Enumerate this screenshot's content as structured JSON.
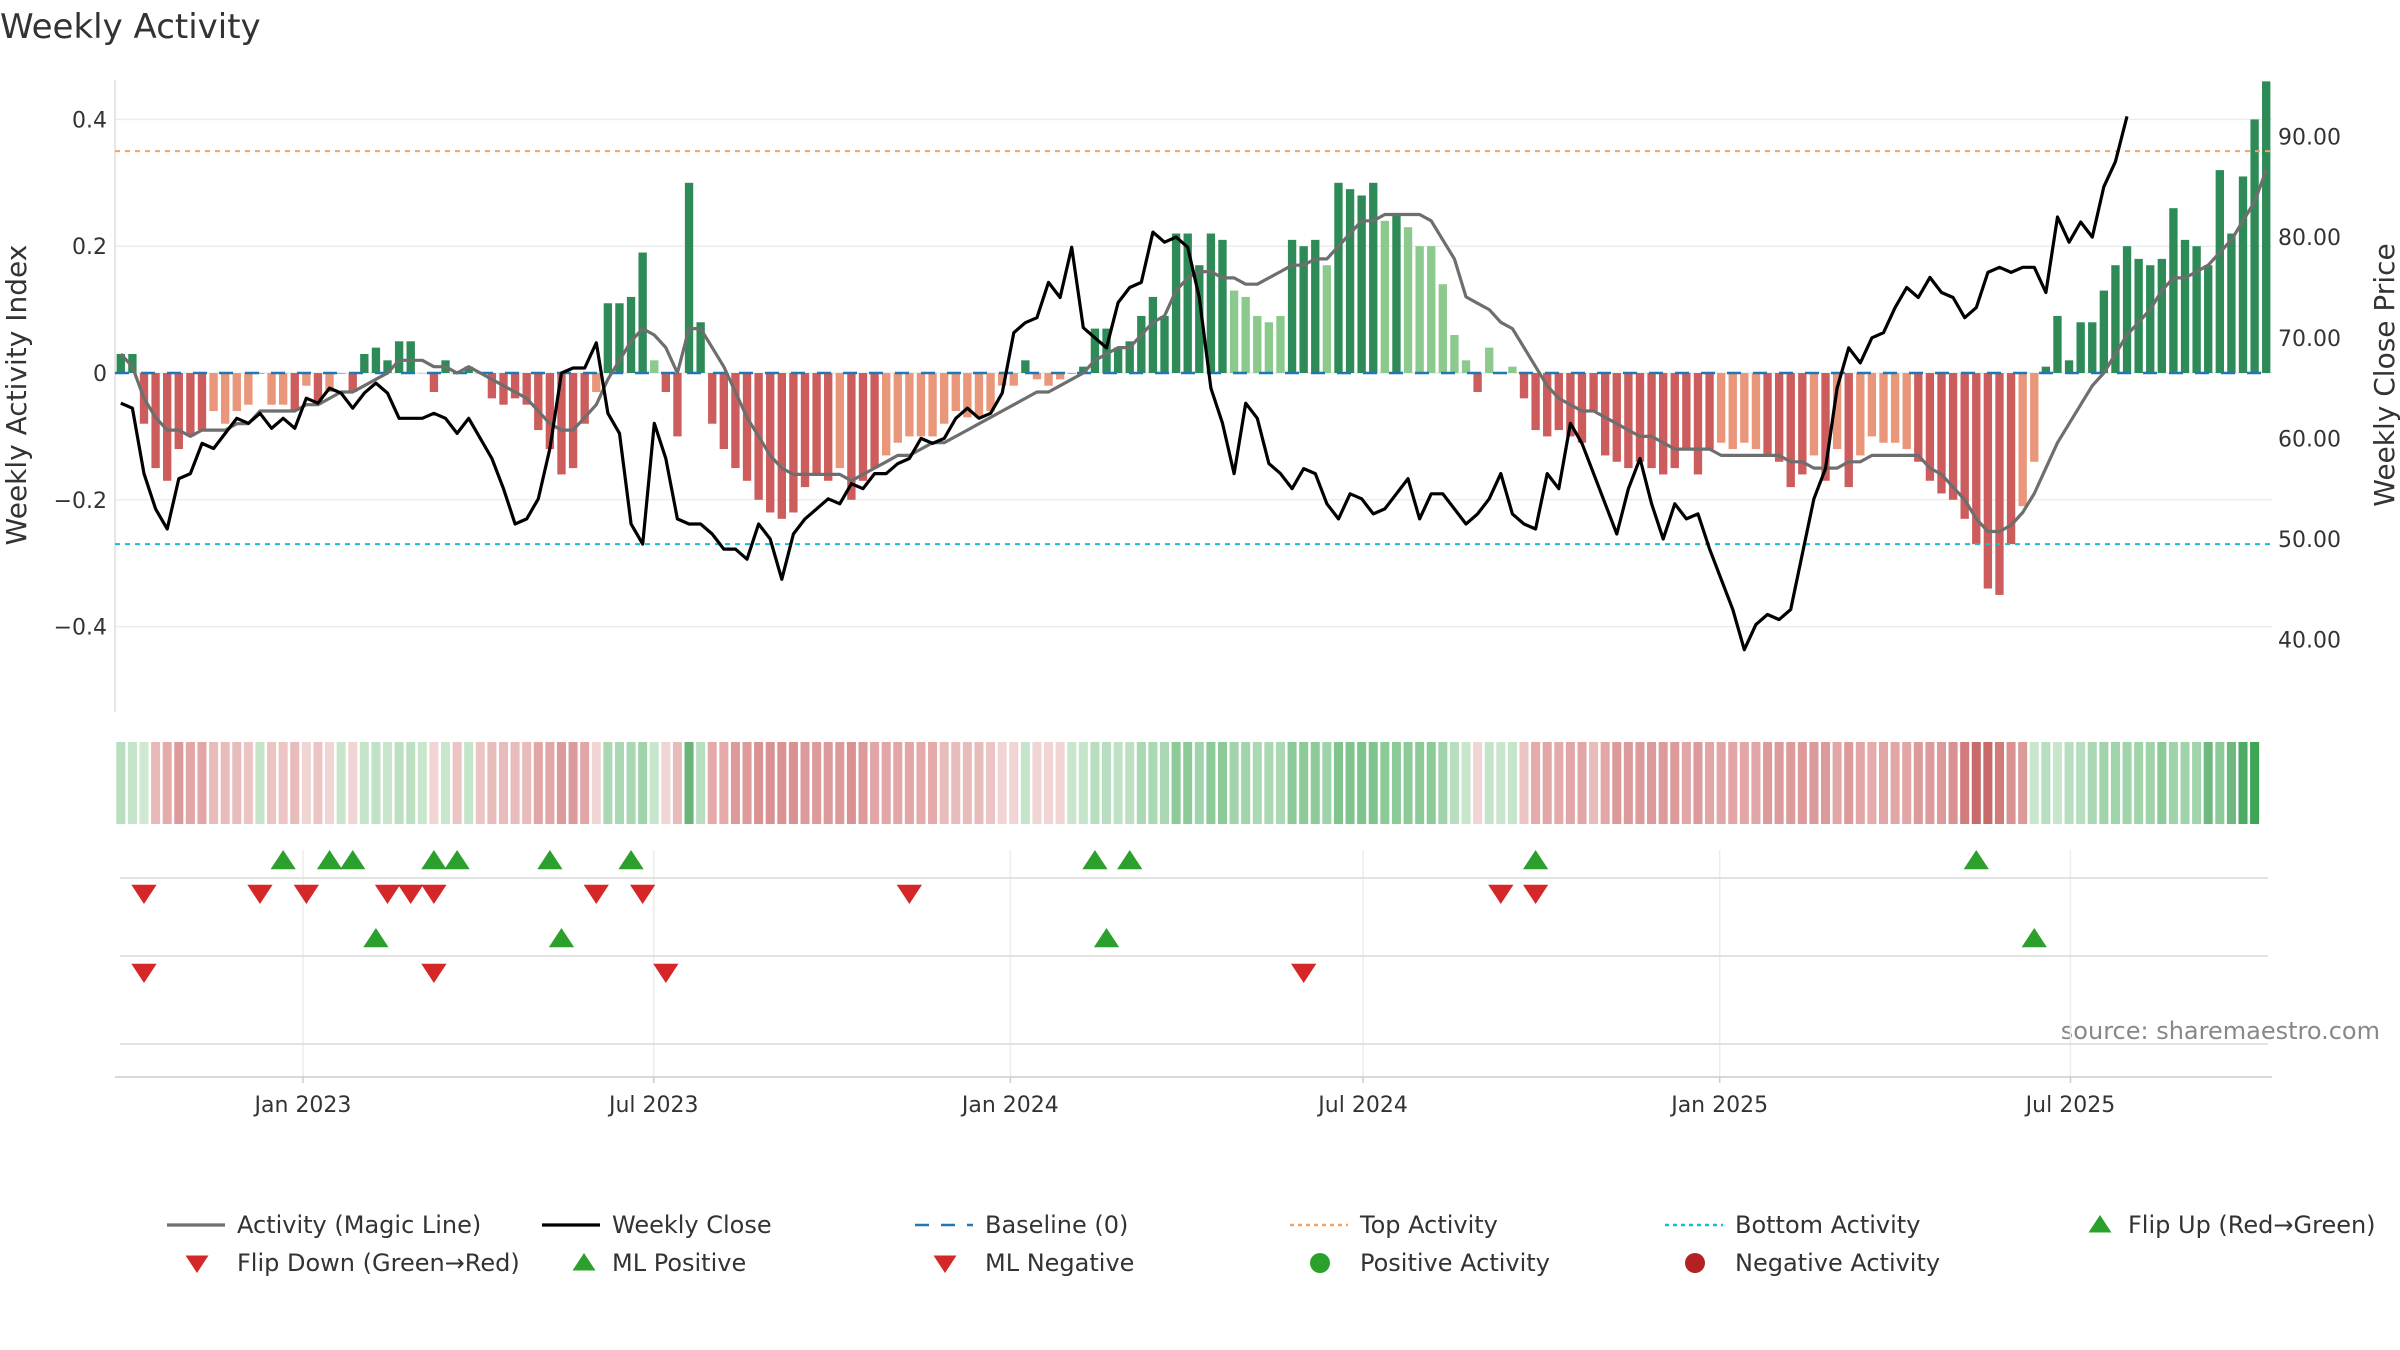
{
  "chart_data": {
    "type": "bar",
    "title": "Weekly Activity",
    "ylabel": "Weekly Activity Index",
    "y2label": "Weekly Close Price",
    "source_text": "source: sharemaestro.com",
    "ylim": [
      -0.5,
      0.5
    ],
    "y2lim": [
      35,
      98
    ],
    "yticks": [
      -0.4,
      -0.2,
      0,
      0.2,
      0.4
    ],
    "ytick_labels": [
      "−0.4",
      "−0.2",
      "0",
      "0.2",
      "0.4"
    ],
    "y2ticks": [
      40,
      50,
      60,
      70,
      80,
      90
    ],
    "y2tick_labels": [
      "40.00",
      "50.00",
      "60.00",
      "70.00",
      "80.00",
      "90.00"
    ],
    "x_start": "2022-09-26",
    "x_end": "2025-10-13",
    "xtick_labels": [
      "Jan 2023",
      "Jul 2023",
      "Jan 2024",
      "Jul 2024",
      "Jan 2025",
      "Jul 2025"
    ],
    "xtick_dates": [
      "2023-01-01",
      "2023-07-01",
      "2024-01-01",
      "2024-07-01",
      "2025-01-01",
      "2025-07-01"
    ],
    "top_activity": 0.35,
    "bottom_activity": -0.27,
    "baseline": 0,
    "colors": {
      "pos_strong": "#2e8b57",
      "pos_weak": "#8cc98c",
      "neg_strong": "#cd5c5c",
      "neg_weak": "#e9967a",
      "magic_line": "#6e6e6e",
      "close": "#000000",
      "baseline": "#1f77b4",
      "top": "#f4a460",
      "bottom": "#17becf",
      "up_marker": "#2ca02c",
      "down_marker": "#d62728",
      "neg_dot": "#b22222"
    },
    "activity": [
      0.03,
      0.03,
      -0.08,
      -0.15,
      -0.17,
      -0.12,
      -0.1,
      -0.09,
      -0.06,
      -0.08,
      -0.06,
      -0.05,
      0.0,
      -0.05,
      -0.05,
      -0.06,
      -0.02,
      -0.05,
      -0.03,
      0.0,
      -0.03,
      0.03,
      0.04,
      0.02,
      0.05,
      0.05,
      0.0,
      -0.03,
      0.02,
      0.0,
      0.01,
      0.0,
      -0.04,
      -0.05,
      -0.04,
      -0.05,
      -0.09,
      -0.12,
      -0.16,
      -0.15,
      -0.08,
      -0.03,
      0.11,
      0.11,
      0.12,
      0.19,
      0.02,
      -0.03,
      -0.1,
      0.3,
      0.08,
      -0.08,
      -0.12,
      -0.15,
      -0.17,
      -0.2,
      -0.22,
      -0.23,
      -0.22,
      -0.18,
      -0.16,
      -0.17,
      -0.15,
      -0.2,
      -0.17,
      -0.15,
      -0.13,
      -0.11,
      -0.1,
      -0.1,
      -0.1,
      -0.08,
      -0.06,
      -0.07,
      -0.07,
      -0.06,
      -0.02,
      -0.02,
      0.02,
      -0.01,
      -0.02,
      -0.01,
      0.0,
      0.01,
      0.07,
      0.07,
      0.04,
      0.05,
      0.09,
      0.12,
      0.09,
      0.22,
      0.22,
      0.17,
      0.22,
      0.21,
      0.13,
      0.12,
      0.09,
      0.08,
      0.09,
      0.21,
      0.2,
      0.21,
      0.17,
      0.3,
      0.29,
      0.28,
      0.3,
      0.24,
      0.25,
      0.23,
      0.2,
      0.2,
      0.14,
      0.06,
      0.02,
      -0.03,
      0.04,
      0.0,
      0.01,
      -0.04,
      -0.09,
      -0.1,
      -0.09,
      -0.1,
      -0.11,
      -0.06,
      -0.13,
      -0.14,
      -0.15,
      -0.14,
      -0.15,
      -0.16,
      -0.15,
      -0.12,
      -0.16,
      -0.12,
      -0.11,
      -0.12,
      -0.11,
      -0.12,
      -0.13,
      -0.14,
      -0.18,
      -0.16,
      -0.13,
      -0.17,
      -0.12,
      -0.18,
      -0.13,
      -0.1,
      -0.11,
      -0.11,
      -0.12,
      -0.14,
      -0.17,
      -0.19,
      -0.2,
      -0.23,
      -0.27,
      -0.34,
      -0.35,
      -0.27,
      -0.21,
      -0.14,
      0.01,
      0.09,
      0.02,
      0.08,
      0.08,
      0.13,
      0.17,
      0.2,
      0.18,
      0.17,
      0.18,
      0.26,
      0.21,
      0.2,
      0.17,
      0.32,
      0.22,
      0.31,
      0.4,
      0.46
    ],
    "magic_line": [
      0.03,
      0.01,
      -0.04,
      -0.07,
      -0.09,
      -0.09,
      -0.1,
      -0.09,
      -0.09,
      -0.09,
      -0.08,
      -0.08,
      -0.06,
      -0.06,
      -0.06,
      -0.06,
      -0.05,
      -0.05,
      -0.04,
      -0.03,
      -0.03,
      -0.02,
      -0.01,
      0.0,
      0.02,
      0.02,
      0.02,
      0.01,
      0.01,
      0.0,
      0.01,
      0.0,
      -0.01,
      -0.02,
      -0.03,
      -0.04,
      -0.06,
      -0.08,
      -0.09,
      -0.09,
      -0.07,
      -0.05,
      -0.01,
      0.02,
      0.05,
      0.07,
      0.06,
      0.04,
      0.0,
      0.07,
      0.07,
      0.04,
      0.01,
      -0.03,
      -0.07,
      -0.1,
      -0.13,
      -0.15,
      -0.16,
      -0.16,
      -0.16,
      -0.16,
      -0.16,
      -0.17,
      -0.16,
      -0.15,
      -0.14,
      -0.13,
      -0.13,
      -0.12,
      -0.11,
      -0.11,
      -0.1,
      -0.09,
      -0.08,
      -0.07,
      -0.06,
      -0.05,
      -0.04,
      -0.03,
      -0.03,
      -0.02,
      -0.01,
      0.0,
      0.02,
      0.03,
      0.04,
      0.04,
      0.06,
      0.08,
      0.09,
      0.13,
      0.15,
      0.16,
      0.16,
      0.15,
      0.15,
      0.14,
      0.14,
      0.15,
      0.16,
      0.17,
      0.17,
      0.18,
      0.18,
      0.2,
      0.22,
      0.24,
      0.24,
      0.25,
      0.25,
      0.25,
      0.25,
      0.24,
      0.21,
      0.18,
      0.12,
      0.11,
      0.1,
      0.08,
      0.07,
      0.04,
      0.01,
      -0.02,
      -0.04,
      -0.05,
      -0.06,
      -0.06,
      -0.07,
      -0.08,
      -0.09,
      -0.1,
      -0.1,
      -0.11,
      -0.12,
      -0.12,
      -0.12,
      -0.12,
      -0.13,
      -0.13,
      -0.13,
      -0.13,
      -0.13,
      -0.13,
      -0.14,
      -0.14,
      -0.15,
      -0.15,
      -0.15,
      -0.14,
      -0.14,
      -0.13,
      -0.13,
      -0.13,
      -0.13,
      -0.13,
      -0.15,
      -0.16,
      -0.18,
      -0.2,
      -0.23,
      -0.25,
      -0.25,
      -0.24,
      -0.22,
      -0.19,
      -0.15,
      -0.11,
      -0.08,
      -0.05,
      -0.02,
      0.0,
      0.03,
      0.06,
      0.08,
      0.1,
      0.13,
      0.15,
      0.15,
      0.16,
      0.17,
      0.19,
      0.21,
      0.24,
      0.27,
      0.32
    ],
    "weekly_close": [
      63.5,
      63.0,
      56.5,
      53.0,
      51.0,
      56.0,
      56.5,
      59.5,
      59.0,
      60.5,
      62.0,
      61.5,
      62.5,
      61.0,
      62.0,
      61.0,
      64.0,
      63.5,
      65.0,
      64.5,
      63.0,
      64.5,
      65.5,
      64.5,
      62.0,
      62.0,
      62.0,
      62.5,
      62.0,
      60.5,
      62.0,
      60.0,
      58.0,
      55.0,
      51.5,
      52.0,
      54.0,
      59.0,
      66.5,
      67.0,
      67.0,
      69.5,
      62.5,
      60.5,
      51.5,
      49.5,
      61.5,
      58.0,
      52.0,
      51.5,
      51.5,
      50.5,
      49.0,
      49.0,
      48.0,
      51.5,
      50.0,
      46.0,
      50.5,
      52.0,
      53.0,
      54.0,
      53.5,
      55.5,
      55.0,
      56.5,
      56.5,
      57.5,
      58.0,
      60.0,
      59.5,
      60.0,
      62.0,
      63.0,
      62.0,
      62.5,
      64.5,
      70.5,
      71.5,
      72.0,
      75.5,
      74.0,
      79.0,
      71.0,
      70.0,
      69.0,
      73.5,
      75.0,
      75.5,
      80.5,
      79.5,
      80.0,
      79.0,
      74.0,
      65.0,
      61.5,
      56.5,
      63.5,
      62.0,
      57.5,
      56.5,
      55.0,
      57.0,
      56.5,
      53.5,
      52.0,
      54.5,
      54.0,
      52.5,
      53.0,
      54.5,
      56.0,
      52.0,
      54.5,
      54.5,
      53.0,
      51.5,
      52.5,
      54.0,
      56.5,
      52.5,
      51.5,
      51.0,
      56.5,
      55.0,
      61.5,
      59.5,
      56.5,
      53.5,
      50.5,
      55.0,
      58.0,
      53.5,
      50.0,
      53.5,
      52.0,
      52.5,
      49.0,
      46.0,
      43.0,
      39.0,
      41.5,
      42.5,
      42.0,
      43.0,
      48.5,
      54.0,
      57.0,
      65.0,
      69.0,
      67.5,
      70.0,
      70.5,
      73.0,
      75.0,
      74.0,
      76.0,
      74.5,
      74.0,
      72.0,
      73.0,
      76.5,
      77.0,
      76.5,
      77.0,
      77.0,
      74.5,
      82.0,
      79.5,
      81.5,
      80.0,
      85.0,
      87.5,
      92.0
    ],
    "strip_tones": [
      "#b7dfbf",
      "#c4e3c8",
      "#cfe8d2",
      "#e9b9b9",
      "#e5abab",
      "#dd9a9a",
      "#e3a6a6",
      "#e3a6a6",
      "#e9bcbc",
      "#e9bcbc",
      "#e9bcbc",
      "#ecc4c4",
      "#c5e5ca",
      "#ecc4c4",
      "#ecc4c4",
      "#e9bcbc",
      "#f1d4d4",
      "#ecc4c4",
      "#f1d4d4",
      "#c8e6cc",
      "#f1d4d4",
      "#c5e5ca",
      "#bfe2c6",
      "#c8e6cc",
      "#bde0c3",
      "#bde0c3",
      "#c8e6cc",
      "#f1d4d4",
      "#c8e6cc",
      "#ecc4c4",
      "#c5e5ca",
      "#ecc4c4",
      "#e9bcbc",
      "#e9bcbc",
      "#e9bcbc",
      "#e9bcbc",
      "#e3a6a6",
      "#e3a6a6",
      "#dd9a9a",
      "#dd9a9a",
      "#e3a6a6",
      "#f1d4d4",
      "#a9d8b2",
      "#a9d8b2",
      "#a9d8b2",
      "#9fd3a9",
      "#c8e6cc",
      "#f1d4d4",
      "#e9bcbc",
      "#6ab47a",
      "#b7dfbf",
      "#e5abab",
      "#e5abab",
      "#dd9a9a",
      "#dd9a9a",
      "#d99191",
      "#d99191",
      "#d99191",
      "#d99191",
      "#dd9a9a",
      "#dd9a9a",
      "#dd9a9a",
      "#dd9a9a",
      "#d99191",
      "#dd9a9a",
      "#e3a6a6",
      "#e3a6a6",
      "#e3a6a6",
      "#e3a6a6",
      "#e5abab",
      "#e5abab",
      "#e9bcbc",
      "#e9bcbc",
      "#e9bcbc",
      "#e9bcbc",
      "#ecc4c4",
      "#f1d4d4",
      "#f1d4d4",
      "#c5e5ca",
      "#f1d4d4",
      "#f1d4d4",
      "#f1d4d4",
      "#c8e6cc",
      "#c5e5ca",
      "#b7dfbf",
      "#b7dfbf",
      "#bfe2c6",
      "#bde0c3",
      "#a9d8b2",
      "#a9d8b2",
      "#a9d8b2",
      "#8ccb98",
      "#8ccb98",
      "#9fd3a9",
      "#8ccb98",
      "#8ccb98",
      "#a1d4ab",
      "#a1d4ab",
      "#a9d8b2",
      "#a9d8b2",
      "#a9d8b2",
      "#8ccb98",
      "#8ccb98",
      "#8ccb98",
      "#9fd3a9",
      "#7fc48d",
      "#7fc48d",
      "#7fc48d",
      "#7fc48d",
      "#8ccb98",
      "#8ccb98",
      "#8ccb98",
      "#8ccb98",
      "#8ccb98",
      "#a1d4ab",
      "#b7dfbf",
      "#c8e6cc",
      "#f1d4d4",
      "#c5e5ca",
      "#c8e6cc",
      "#c5e5ca",
      "#ecc4c4",
      "#e5abab",
      "#e3a6a6",
      "#e5abab",
      "#e3a6a6",
      "#e3a6a6",
      "#e9bcbc",
      "#e3a6a6",
      "#dd9a9a",
      "#dd9a9a",
      "#dd9a9a",
      "#dd9a9a",
      "#dd9a9a",
      "#dd9a9a",
      "#e3a6a6",
      "#dd9a9a",
      "#e3a6a6",
      "#e3a6a6",
      "#e3a6a6",
      "#e3a6a6",
      "#e3a6a6",
      "#dd9a9a",
      "#dd9a9a",
      "#dd9a9a",
      "#dd9a9a",
      "#dd9a9a",
      "#dd9a9a",
      "#e3a6a6",
      "#dd9a9a",
      "#e3a6a6",
      "#e5abab",
      "#e3a6a6",
      "#e3a6a6",
      "#e3a6a6",
      "#dd9a9a",
      "#dd9a9a",
      "#dd9a9a",
      "#d99191",
      "#d17b7b",
      "#c86a6a",
      "#c86a6a",
      "#d17b7b",
      "#d99191",
      "#dd9a9a",
      "#c8e6cc",
      "#b7dfbf",
      "#c8e6cc",
      "#b7dfbf",
      "#b7dfbf",
      "#a9d8b2",
      "#a1d4ab",
      "#9fd3a9",
      "#9fd3a9",
      "#a1d4ab",
      "#9fd3a9",
      "#8ccb98",
      "#9fd3a9",
      "#9fd3a9",
      "#a1d4ab",
      "#6fb980",
      "#8ccb98",
      "#6fb980",
      "#4caa63",
      "#3da556"
    ],
    "flip_up_weeks": [
      14,
      18,
      20,
      27,
      29,
      37,
      44,
      84,
      87,
      122,
      160
    ],
    "flip_down_weeks": [
      2,
      12,
      16,
      23,
      25,
      27,
      41,
      45,
      68,
      119,
      122
    ],
    "ml_positive_weeks": [
      22,
      38,
      85,
      165
    ],
    "ml_negative_weeks": [
      2,
      27,
      47,
      102
    ],
    "legend": [
      "Activity (Magic Line)",
      "Weekly Close",
      "Baseline (0)",
      "Top Activity",
      "Bottom Activity",
      "Flip Up (Red→Green)",
      "Flip Down (Green→Red)",
      "ML Positive",
      "ML Negative",
      "Positive Activity",
      "Negative Activity"
    ]
  }
}
